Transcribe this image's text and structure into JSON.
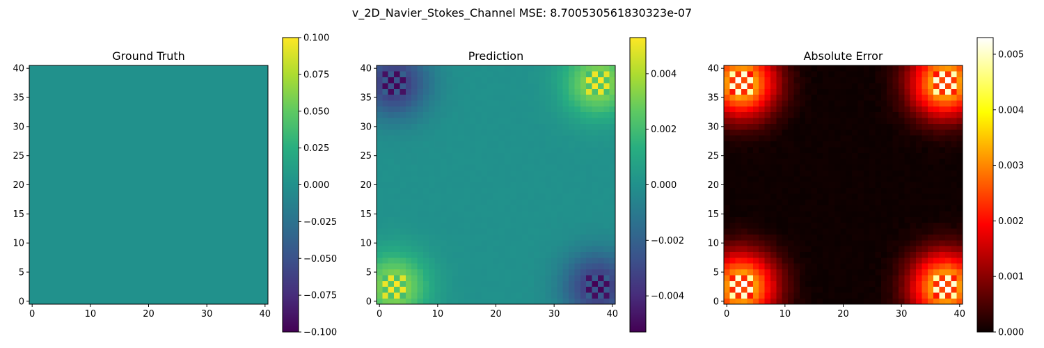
{
  "figure": {
    "title": "v_2D_Navier_Stokes_Channel MSE: 8.700530561830323e-07"
  },
  "chart_data": [
    {
      "type": "heatmap",
      "title": "Ground Truth",
      "colormap": "viridis",
      "grid_size": 41,
      "field": "zero",
      "xlim": [
        0,
        40
      ],
      "ylim": [
        0,
        40
      ],
      "x_ticks": [
        "0",
        "10",
        "20",
        "30",
        "40"
      ],
      "y_ticks": [
        "0",
        "5",
        "10",
        "15",
        "20",
        "25",
        "30",
        "35",
        "40"
      ],
      "colorbar": {
        "range": [
          -0.1,
          0.1
        ],
        "ticks": [
          -0.1,
          -0.075,
          -0.05,
          -0.025,
          0.0,
          0.025,
          0.05,
          0.075,
          0.1
        ],
        "tick_labels": [
          "−0.100",
          "−0.075",
          "−0.050",
          "−0.025",
          "0.000",
          "0.025",
          "0.050",
          "0.075",
          "0.100"
        ]
      }
    },
    {
      "type": "heatmap",
      "title": "Prediction",
      "colormap": "viridis",
      "grid_size": 41,
      "field": "signed_corners",
      "peak_value": 0.0053,
      "corner_signs": {
        "bottom_left": 1,
        "top_right": 1,
        "top_left": -1,
        "bottom_right": -1
      },
      "xlim": [
        0,
        40
      ],
      "ylim": [
        0,
        40
      ],
      "x_ticks": [
        "0",
        "10",
        "20",
        "30",
        "40"
      ],
      "y_ticks": [
        "0",
        "5",
        "10",
        "15",
        "20",
        "25",
        "30",
        "35",
        "40"
      ],
      "colorbar": {
        "range": [
          -0.0053,
          0.0053
        ],
        "ticks": [
          -0.004,
          -0.002,
          0.0,
          0.002,
          0.004
        ],
        "tick_labels": [
          "−0.004",
          "−0.002",
          "0.000",
          "0.002",
          "0.004"
        ]
      }
    },
    {
      "type": "heatmap",
      "title": "Absolute Error",
      "colormap": "hot",
      "grid_size": 41,
      "field": "abs_corners",
      "peak_value": 0.0053,
      "xlim": [
        0,
        40
      ],
      "ylim": [
        0,
        40
      ],
      "x_ticks": [
        "0",
        "10",
        "20",
        "30",
        "40"
      ],
      "y_ticks": [
        "0",
        "5",
        "10",
        "15",
        "20",
        "25",
        "30",
        "35",
        "40"
      ],
      "colorbar": {
        "range": [
          0.0,
          0.0053
        ],
        "ticks": [
          0.0,
          0.001,
          0.002,
          0.003,
          0.004,
          0.005
        ],
        "tick_labels": [
          "0.000",
          "0.001",
          "0.002",
          "0.003",
          "0.004",
          "0.005"
        ]
      }
    }
  ]
}
